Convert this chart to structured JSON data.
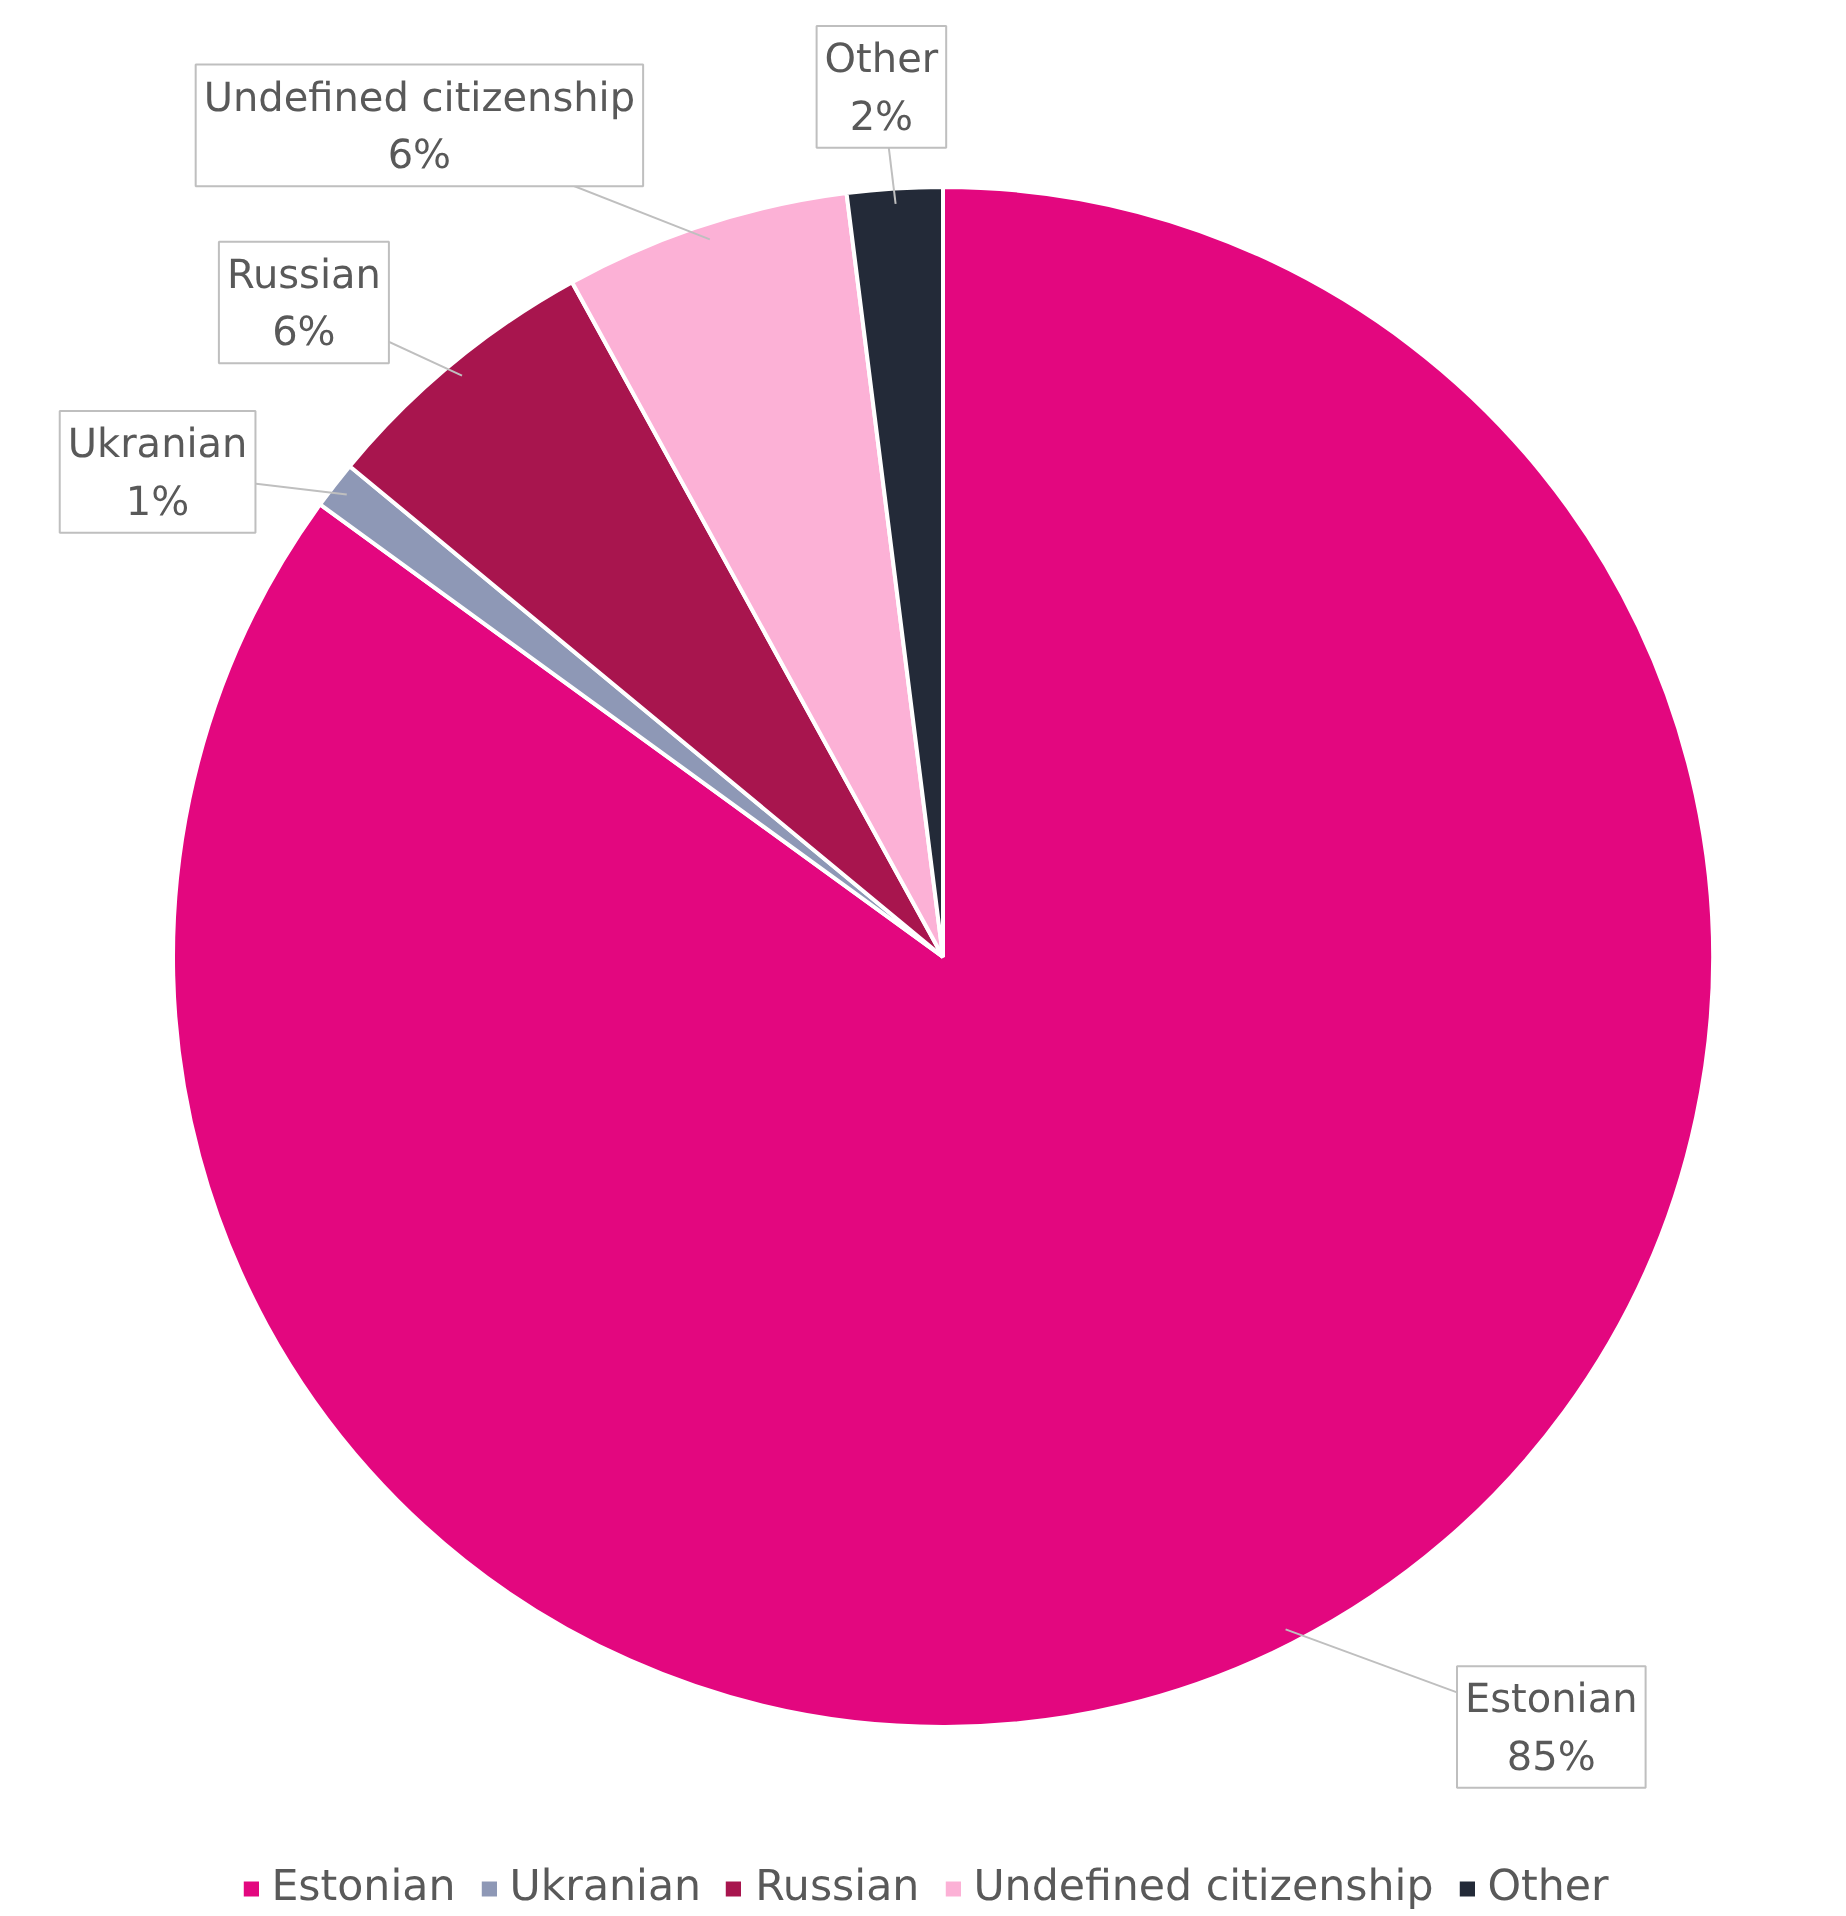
{
  "chart_data": {
    "type": "pie",
    "categories": [
      "Estonian",
      "Ukranian",
      "Russian",
      "Undefined citizenship",
      "Other"
    ],
    "values": [
      85,
      1,
      6,
      6,
      2
    ],
    "colors": [
      "#e3077f",
      "#8e98b6",
      "#a8154e",
      "#fcb1d6",
      "#232a38"
    ],
    "value_labels": [
      "85%",
      "1%",
      "6%",
      "6%",
      "2%"
    ],
    "legend": "bottom"
  }
}
